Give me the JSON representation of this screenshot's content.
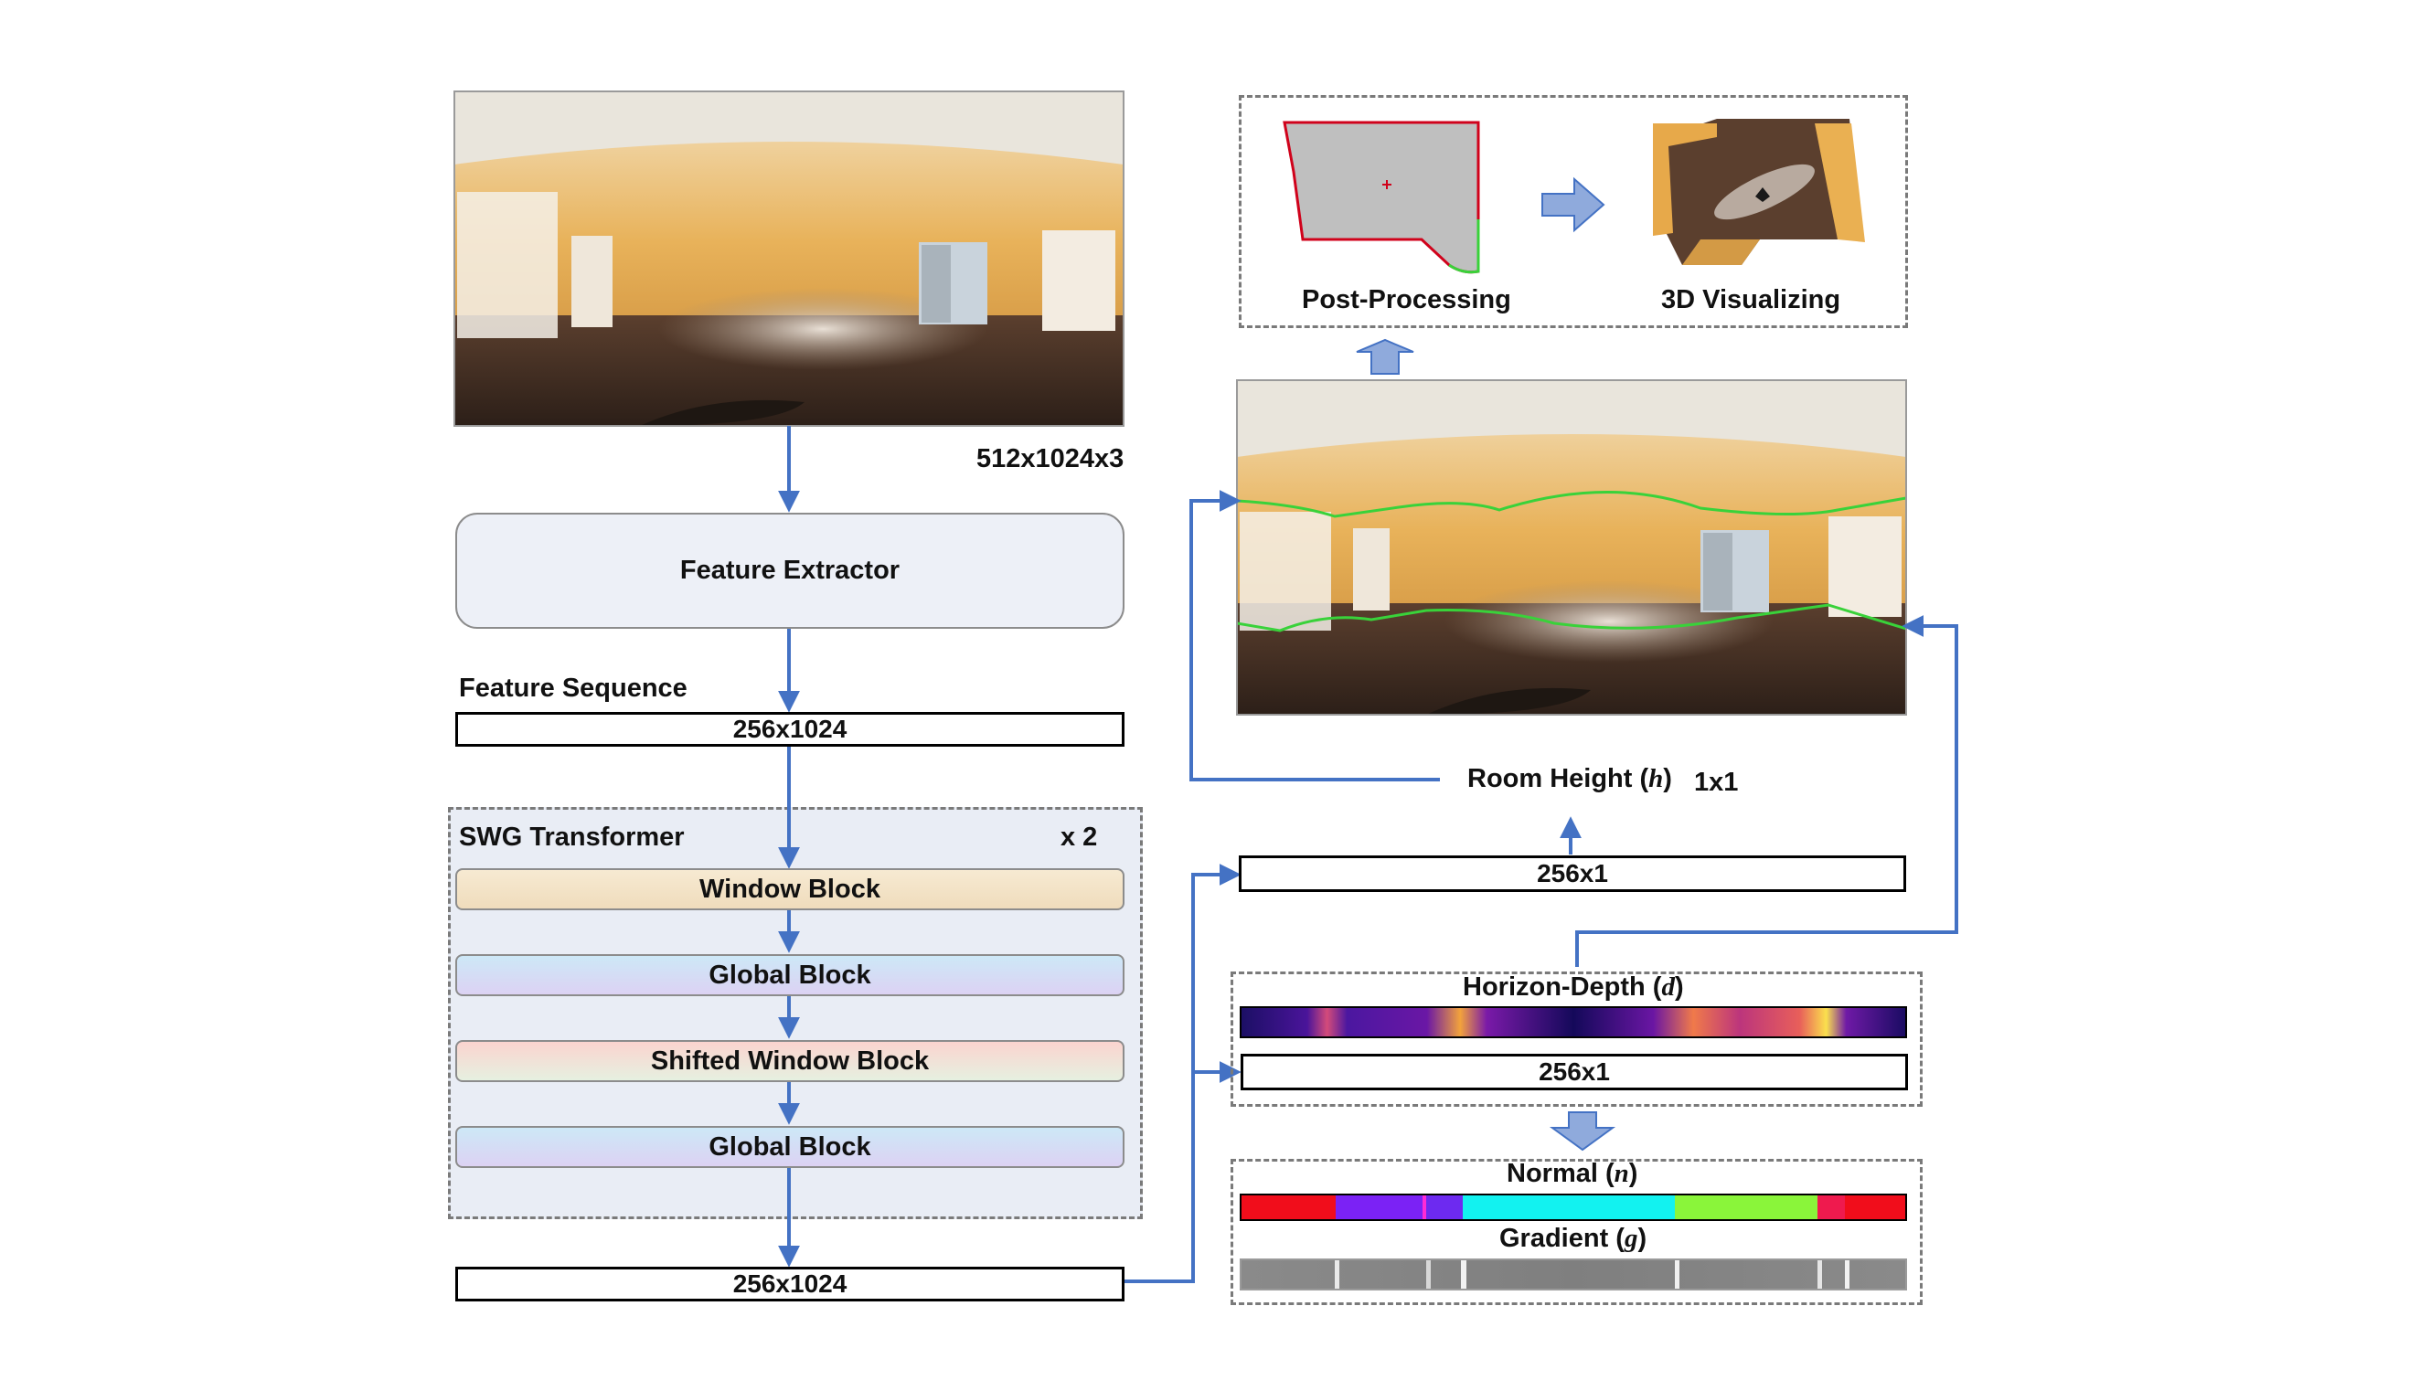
{
  "labels": {
    "input_dim": "512x1024x3",
    "feature_extractor": "Feature Extractor",
    "feature_sequence": "Feature Sequence",
    "seq_dim_top": "256x1024",
    "swg_transformer": "SWG Transformer",
    "repeat": "x 2",
    "window_block": "Window Block",
    "global_block_1": "Global Block",
    "shifted_window_block": "Shifted Window Block",
    "global_block_2": "Global Block",
    "seq_dim_bottom": "256x1024",
    "post_processing": "Post-Processing",
    "visualizing_3d": "3D Visualizing",
    "room_height": "Room Height (",
    "room_height_var": "h",
    "room_height_close": ")",
    "height_dim": "1x1",
    "height_vec_dim": "256x1",
    "horizon_depth": "Horizon-Depth (",
    "horizon_depth_var": "d",
    "horizon_depth_close": ")",
    "depth_vec_dim": "256x1",
    "normal": "Normal (",
    "normal_var": "n",
    "normal_close": ")",
    "gradient": "Gradient (",
    "gradient_var": "g",
    "gradient_close": ")"
  },
  "colors": {
    "arrow": "#4472c4",
    "arrow_fill": "#8faadc",
    "window_block": "#f3e3c6",
    "global_block": "#d7d6f2",
    "shifted_block": "#f8d8d4",
    "extractor": "#edf0f7",
    "swg_panel": "#e9edf5",
    "layout_line": "#39d23a"
  }
}
